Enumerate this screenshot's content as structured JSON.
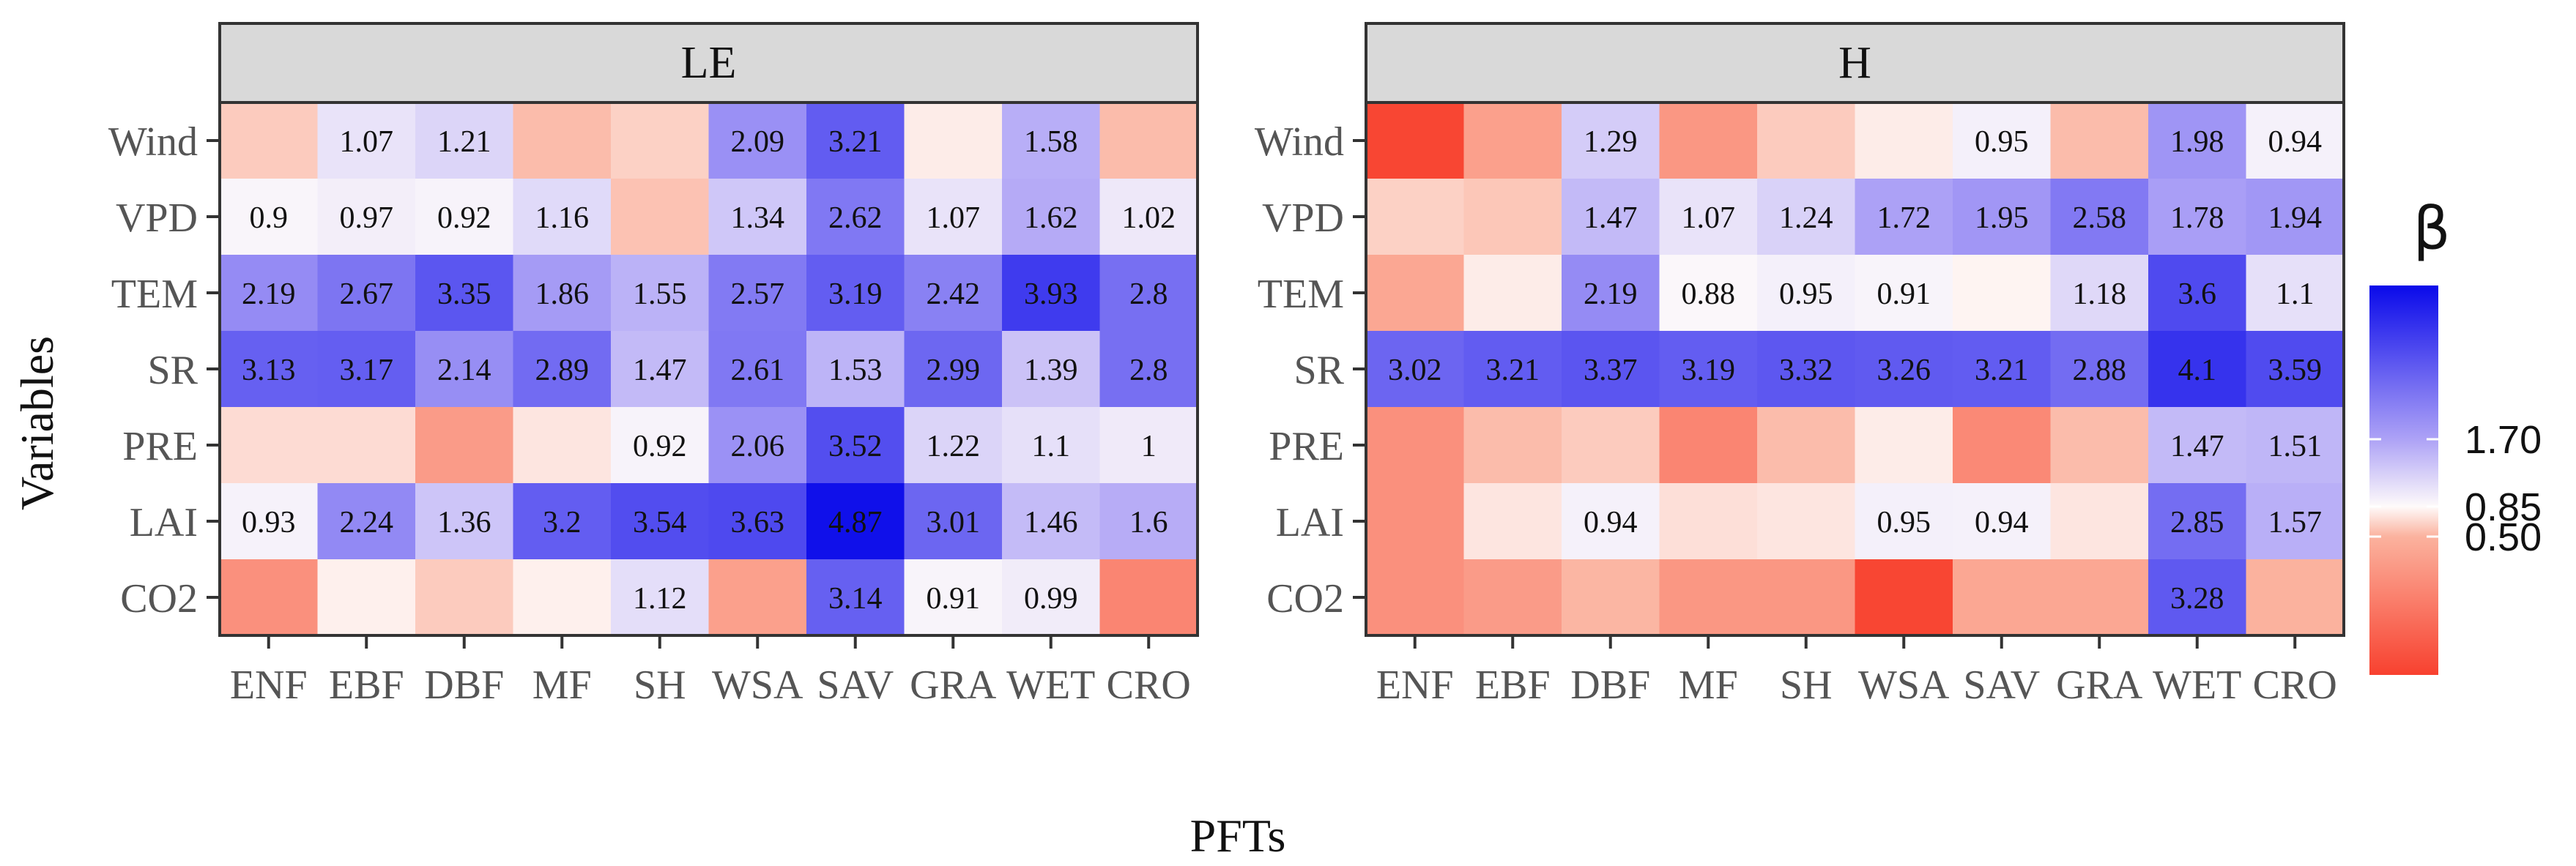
{
  "chart_data": {
    "type": "heatmap",
    "xlabel": "PFTs",
    "ylabel": "Variables",
    "categories": [
      "ENF",
      "EBF",
      "DBF",
      "MF",
      "SH",
      "WSA",
      "SAV",
      "GRA",
      "WET",
      "CRO"
    ],
    "variables": [
      "Wind",
      "VPD",
      "TEM",
      "SR",
      "PRE",
      "LAI",
      "CO2"
    ],
    "panels": [
      {
        "title": "LE",
        "cells": [
          [
            {
              "v": 0.62,
              "label": ""
            },
            {
              "v": 1.07,
              "label": "1.07"
            },
            {
              "v": 1.21,
              "label": "1.21"
            },
            {
              "v": 0.55,
              "label": ""
            },
            {
              "v": 0.65,
              "label": ""
            },
            {
              "v": 2.09,
              "label": "2.09"
            },
            {
              "v": 3.21,
              "label": "3.21"
            },
            {
              "v": 0.78,
              "label": ""
            },
            {
              "v": 1.58,
              "label": "1.58"
            },
            {
              "v": 0.55,
              "label": ""
            }
          ],
          [
            {
              "v": 0.9,
              "label": "0.9"
            },
            {
              "v": 0.97,
              "label": "0.97"
            },
            {
              "v": 0.92,
              "label": "0.92"
            },
            {
              "v": 1.16,
              "label": "1.16"
            },
            {
              "v": 0.58,
              "label": ""
            },
            {
              "v": 1.34,
              "label": "1.34"
            },
            {
              "v": 2.62,
              "label": "2.62"
            },
            {
              "v": 1.07,
              "label": "1.07"
            },
            {
              "v": 1.62,
              "label": "1.62"
            },
            {
              "v": 1.02,
              "label": "1.02"
            }
          ],
          [
            {
              "v": 2.19,
              "label": "2.19"
            },
            {
              "v": 2.67,
              "label": "2.67"
            },
            {
              "v": 3.35,
              "label": "3.35"
            },
            {
              "v": 1.86,
              "label": "1.86"
            },
            {
              "v": 1.55,
              "label": "1.55"
            },
            {
              "v": 2.57,
              "label": "2.57"
            },
            {
              "v": 3.19,
              "label": "3.19"
            },
            {
              "v": 2.42,
              "label": "2.42"
            },
            {
              "v": 3.93,
              "label": "3.93"
            },
            {
              "v": 2.8,
              "label": "2.8"
            }
          ],
          [
            {
              "v": 3.13,
              "label": "3.13"
            },
            {
              "v": 3.17,
              "label": "3.17"
            },
            {
              "v": 2.14,
              "label": "2.14"
            },
            {
              "v": 2.89,
              "label": "2.89"
            },
            {
              "v": 1.47,
              "label": "1.47"
            },
            {
              "v": 2.61,
              "label": "2.61"
            },
            {
              "v": 1.53,
              "label": "1.53"
            },
            {
              "v": 2.99,
              "label": "2.99"
            },
            {
              "v": 1.39,
              "label": "1.39"
            },
            {
              "v": 2.8,
              "label": "2.8"
            }
          ],
          [
            {
              "v": 0.7,
              "label": ""
            },
            {
              "v": 0.7,
              "label": ""
            },
            {
              "v": 0.4,
              "label": ""
            },
            {
              "v": 0.75,
              "label": ""
            },
            {
              "v": 0.92,
              "label": "0.92"
            },
            {
              "v": 2.06,
              "label": "2.06"
            },
            {
              "v": 3.52,
              "label": "3.52"
            },
            {
              "v": 1.22,
              "label": "1.22"
            },
            {
              "v": 1.1,
              "label": "1.1"
            },
            {
              "v": 1.0,
              "label": "1"
            }
          ],
          [
            {
              "v": 0.93,
              "label": "0.93"
            },
            {
              "v": 2.24,
              "label": "2.24"
            },
            {
              "v": 1.36,
              "label": "1.36"
            },
            {
              "v": 3.2,
              "label": "3.2"
            },
            {
              "v": 3.54,
              "label": "3.54"
            },
            {
              "v": 3.63,
              "label": "3.63"
            },
            {
              "v": 4.87,
              "label": "4.87"
            },
            {
              "v": 3.01,
              "label": "3.01"
            },
            {
              "v": 1.46,
              "label": "1.46"
            },
            {
              "v": 1.6,
              "label": "1.6"
            }
          ],
          [
            {
              "v": 0.35,
              "label": ""
            },
            {
              "v": 0.8,
              "label": ""
            },
            {
              "v": 0.62,
              "label": ""
            },
            {
              "v": 0.8,
              "label": ""
            },
            {
              "v": 1.12,
              "label": "1.12"
            },
            {
              "v": 0.42,
              "label": ""
            },
            {
              "v": 3.14,
              "label": "3.14"
            },
            {
              "v": 0.91,
              "label": "0.91"
            },
            {
              "v": 0.99,
              "label": "0.99"
            },
            {
              "v": 0.3,
              "label": ""
            }
          ]
        ]
      },
      {
        "title": "H",
        "cells": [
          [
            {
              "v": 0.02,
              "label": ""
            },
            {
              "v": 0.42,
              "label": ""
            },
            {
              "v": 1.29,
              "label": "1.29"
            },
            {
              "v": 0.38,
              "label": ""
            },
            {
              "v": 0.62,
              "label": ""
            },
            {
              "v": 0.78,
              "label": ""
            },
            {
              "v": 0.95,
              "label": "0.95"
            },
            {
              "v": 0.55,
              "label": ""
            },
            {
              "v": 1.98,
              "label": "1.98"
            },
            {
              "v": 0.94,
              "label": "0.94"
            }
          ],
          [
            {
              "v": 0.65,
              "label": ""
            },
            {
              "v": 0.6,
              "label": ""
            },
            {
              "v": 1.47,
              "label": "1.47"
            },
            {
              "v": 1.07,
              "label": "1.07"
            },
            {
              "v": 1.24,
              "label": "1.24"
            },
            {
              "v": 1.72,
              "label": "1.72"
            },
            {
              "v": 1.95,
              "label": "1.95"
            },
            {
              "v": 2.58,
              "label": "2.58"
            },
            {
              "v": 1.78,
              "label": "1.78"
            },
            {
              "v": 1.94,
              "label": "1.94"
            }
          ],
          [
            {
              "v": 0.45,
              "label": ""
            },
            {
              "v": 0.78,
              "label": ""
            },
            {
              "v": 2.19,
              "label": "2.19"
            },
            {
              "v": 0.88,
              "label": "0.88"
            },
            {
              "v": 0.95,
              "label": "0.95"
            },
            {
              "v": 0.91,
              "label": "0.91"
            },
            {
              "v": 0.82,
              "label": ""
            },
            {
              "v": 1.18,
              "label": "1.18"
            },
            {
              "v": 3.6,
              "label": "3.6"
            },
            {
              "v": 1.1,
              "label": "1.1"
            }
          ],
          [
            {
              "v": 3.02,
              "label": "3.02"
            },
            {
              "v": 3.21,
              "label": "3.21"
            },
            {
              "v": 3.37,
              "label": "3.37"
            },
            {
              "v": 3.19,
              "label": "3.19"
            },
            {
              "v": 3.32,
              "label": "3.32"
            },
            {
              "v": 3.26,
              "label": "3.26"
            },
            {
              "v": 3.21,
              "label": "3.21"
            },
            {
              "v": 2.88,
              "label": "2.88"
            },
            {
              "v": 4.1,
              "label": "4.1"
            },
            {
              "v": 3.59,
              "label": "3.59"
            }
          ],
          [
            {
              "v": 0.35,
              "label": ""
            },
            {
              "v": 0.55,
              "label": ""
            },
            {
              "v": 0.62,
              "label": ""
            },
            {
              "v": 0.3,
              "label": ""
            },
            {
              "v": 0.55,
              "label": ""
            },
            {
              "v": 0.78,
              "label": ""
            },
            {
              "v": 0.32,
              "label": ""
            },
            {
              "v": 0.55,
              "label": ""
            },
            {
              "v": 1.47,
              "label": "1.47"
            },
            {
              "v": 1.51,
              "label": "1.51"
            }
          ],
          [
            {
              "v": 0.35,
              "label": ""
            },
            {
              "v": 0.75,
              "label": ""
            },
            {
              "v": 0.94,
              "label": "0.94"
            },
            {
              "v": 0.72,
              "label": ""
            },
            {
              "v": 0.75,
              "label": ""
            },
            {
              "v": 0.95,
              "label": "0.95"
            },
            {
              "v": 0.94,
              "label": "0.94"
            },
            {
              "v": 0.75,
              "label": ""
            },
            {
              "v": 2.85,
              "label": "2.85"
            },
            {
              "v": 1.57,
              "label": "1.57"
            }
          ],
          [
            {
              "v": 0.35,
              "label": ""
            },
            {
              "v": 0.4,
              "label": ""
            },
            {
              "v": 0.52,
              "label": ""
            },
            {
              "v": 0.38,
              "label": ""
            },
            {
              "v": 0.38,
              "label": ""
            },
            {
              "v": 0.02,
              "label": ""
            },
            {
              "v": 0.45,
              "label": ""
            },
            {
              "v": 0.45,
              "label": ""
            },
            {
              "v": 3.28,
              "label": "3.28"
            },
            {
              "v": 0.5,
              "label": ""
            }
          ]
        ]
      }
    ],
    "legend": {
      "title": "β",
      "ticks": [
        {
          "value": 1.7,
          "label": "1.70"
        },
        {
          "value": 0.85,
          "label": "0.85"
        },
        {
          "value": 0.5,
          "label": "0.50"
        }
      ],
      "range": [
        0.0,
        5.0
      ],
      "stops": [
        {
          "value": 0.0,
          "color": "#f8412f"
        },
        {
          "value": 0.5,
          "color": "#fbb29e"
        },
        {
          "value": 0.85,
          "color": "#fefafa"
        },
        {
          "value": 1.7,
          "color": "#ada2f6"
        },
        {
          "value": 5.0,
          "color": "#0a0aea"
        }
      ],
      "position": "right"
    }
  }
}
